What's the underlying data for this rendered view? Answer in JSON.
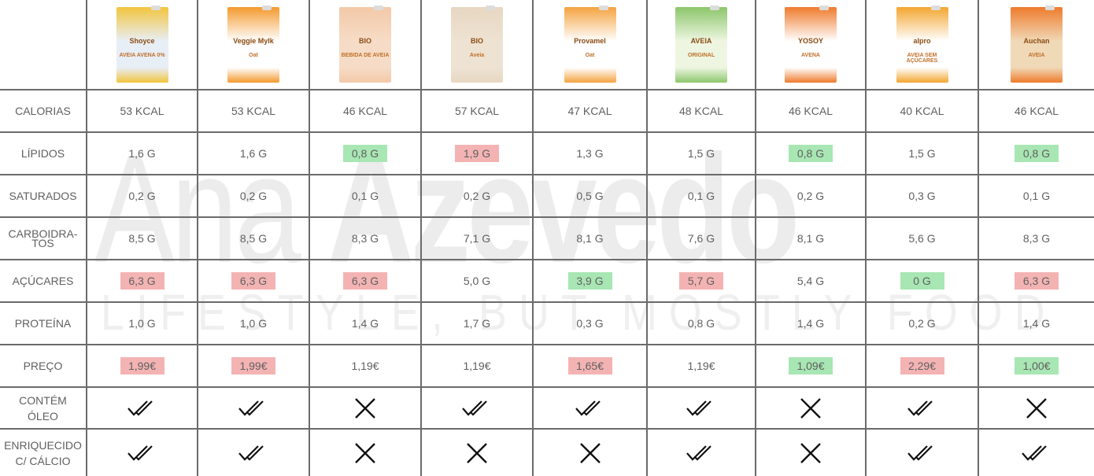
{
  "watermark": {
    "name_first": "Ana ",
    "name_last": "Azevedo",
    "tagline": "LIFESTYLE, BUT MOSTLY FOOD"
  },
  "colors": {
    "bad": "#f4b3b3",
    "good": "#a8e6b3",
    "grid": "#6b6b6b",
    "text": "#606060"
  },
  "products": [
    {
      "brand": "Shoyce",
      "label": "AVEIA AVENA 0%",
      "color": "#f2c53d",
      "body": "#e8eef6"
    },
    {
      "brand": "Veggie Mylk",
      "label": "Oat",
      "color": "#f39a2d",
      "body": "#ffffff"
    },
    {
      "brand": "BIO",
      "label": "BEBIDA DE AVEIA",
      "color": "#f3c9a8",
      "body": "#f6dcc6"
    },
    {
      "brand": "BIO",
      "label": "Aveia",
      "color": "#e7d7c2",
      "body": "#eee2d2"
    },
    {
      "brand": "Provamel",
      "label": "Oat",
      "color": "#f4a340",
      "body": "#ffffff"
    },
    {
      "brand": "AVEIA",
      "label": "ORIGINAL",
      "color": "#8cc66b",
      "body": "#eef6e2"
    },
    {
      "brand": "YOSOY",
      "label": "AVENA",
      "color": "#ef7b2c",
      "body": "#ffffff"
    },
    {
      "brand": "alpro",
      "label": "AVEIA SEM AÇÚCARES",
      "color": "#f3a630",
      "body": "#ffffff"
    },
    {
      "brand": "Auchan",
      "label": "AVEIA",
      "color": "#ef7b2c",
      "body": "#f0d9b7"
    }
  ],
  "rows": [
    {
      "label": "CALORIAS",
      "values": [
        {
          "v": "53 KCAL"
        },
        {
          "v": "53 KCAL"
        },
        {
          "v": "46 KCAL"
        },
        {
          "v": "57 KCAL"
        },
        {
          "v": "47 KCAL"
        },
        {
          "v": "48 KCAL"
        },
        {
          "v": "46 KCAL"
        },
        {
          "v": "40 KCAL"
        },
        {
          "v": "46 KCAL"
        }
      ]
    },
    {
      "label": "LÍPIDOS",
      "values": [
        {
          "v": "1,6 G"
        },
        {
          "v": "1,6 G"
        },
        {
          "v": "0,8 G",
          "h": "green"
        },
        {
          "v": "1,9 G",
          "h": "red"
        },
        {
          "v": "1,3 G"
        },
        {
          "v": "1,5 G"
        },
        {
          "v": "0,8 G",
          "h": "green"
        },
        {
          "v": "1,5 G"
        },
        {
          "v": "0,8 G",
          "h": "green"
        }
      ]
    },
    {
      "label": "SATURADOS",
      "values": [
        {
          "v": "0,2 G"
        },
        {
          "v": "0,2 G"
        },
        {
          "v": "0,1 G"
        },
        {
          "v": "0,2 G"
        },
        {
          "v": "0,5 G"
        },
        {
          "v": "0,1 G"
        },
        {
          "v": "0,2 G"
        },
        {
          "v": "0,3 G"
        },
        {
          "v": "0,1 G"
        }
      ]
    },
    {
      "label": "CARBOIDRA-\nTOS",
      "values": [
        {
          "v": "8,5 G"
        },
        {
          "v": "8,5 G"
        },
        {
          "v": "8,3 G"
        },
        {
          "v": "7,1 G"
        },
        {
          "v": "8,1 G"
        },
        {
          "v": "7,6 G"
        },
        {
          "v": "8,1 G"
        },
        {
          "v": "5,6 G"
        },
        {
          "v": "8,3 G"
        }
      ]
    },
    {
      "label": "AÇÚCARES",
      "values": [
        {
          "v": "6,3 G",
          "h": "red"
        },
        {
          "v": "6,3 G",
          "h": "red"
        },
        {
          "v": "6,3 G",
          "h": "red"
        },
        {
          "v": "5,0 G"
        },
        {
          "v": "3,9 G",
          "h": "green"
        },
        {
          "v": "5,7 G",
          "h": "red"
        },
        {
          "v": "5,4 G"
        },
        {
          "v": "0 G",
          "h": "green"
        },
        {
          "v": "6,3 G",
          "h": "red"
        }
      ]
    },
    {
      "label": "PROTEÍNA",
      "values": [
        {
          "v": "1,0 G"
        },
        {
          "v": "1,0 G"
        },
        {
          "v": "1,4 G"
        },
        {
          "v": "1,7 G"
        },
        {
          "v": "0,3 G"
        },
        {
          "v": "0,8 G"
        },
        {
          "v": "1,4 G"
        },
        {
          "v": "0,2 G"
        },
        {
          "v": "1,4 G"
        }
      ]
    },
    {
      "label": "PREÇO",
      "values": [
        {
          "v": "1,99€",
          "h": "red"
        },
        {
          "v": "1,99€",
          "h": "red"
        },
        {
          "v": "1,19€"
        },
        {
          "v": "1,19€"
        },
        {
          "v": "1,65€",
          "h": "red"
        },
        {
          "v": "1,19€"
        },
        {
          "v": "1,09€",
          "h": "green"
        },
        {
          "v": "2,29€",
          "h": "red"
        },
        {
          "v": "1,00€",
          "h": "green"
        }
      ]
    }
  ],
  "bool_rows": [
    {
      "label_line1": "CONTÉM",
      "label_line2": "ÓLEO",
      "values": [
        "yes",
        "yes",
        "no",
        "yes",
        "yes",
        "yes",
        "no",
        "yes",
        "no"
      ]
    },
    {
      "label_line1": "ENRIQUECIDO",
      "label_line2": "C/ CÁLCIO",
      "values": [
        "yes",
        "yes",
        "no",
        "no",
        "no",
        "yes",
        "no",
        "yes",
        "yes"
      ]
    }
  ],
  "icons": {
    "yes": "double-check-icon",
    "no": "cross-icon"
  }
}
